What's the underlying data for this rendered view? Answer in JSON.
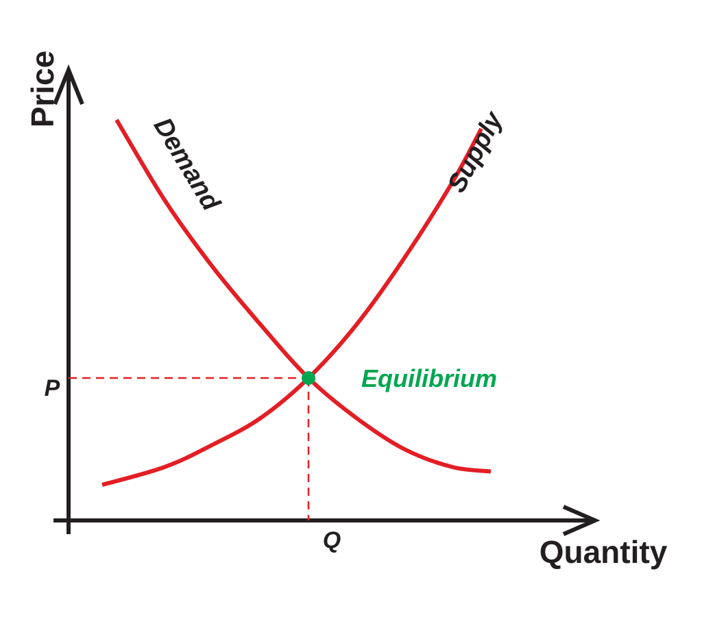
{
  "chart_data": {
    "type": "line",
    "title": "",
    "xlabel": "Quantity",
    "ylabel": "Price",
    "xlim": [
      0,
      100
    ],
    "ylim": [
      0,
      100
    ],
    "grid": false,
    "series": [
      {
        "name": "Demand",
        "color": "#e31e24",
        "points": [
          [
            10,
            90
          ],
          [
            20,
            72
          ],
          [
            30,
            57
          ],
          [
            40,
            44
          ],
          [
            50,
            32
          ],
          [
            60,
            23
          ],
          [
            70,
            16
          ],
          [
            80,
            12
          ],
          [
            88,
            11
          ]
        ]
      },
      {
        "name": "Supply",
        "color": "#e31e24",
        "points": [
          [
            7,
            8
          ],
          [
            20,
            12
          ],
          [
            30,
            17
          ],
          [
            40,
            23
          ],
          [
            50,
            32
          ],
          [
            60,
            44
          ],
          [
            70,
            59
          ],
          [
            80,
            76
          ],
          [
            86,
            88
          ]
        ]
      }
    ],
    "equilibrium": {
      "label": "Equilibrium",
      "x": 50,
      "y": 32,
      "color": "#00a651",
      "x_tick_label": "Q",
      "y_tick_label": "P"
    },
    "guide_line_color": "#e31e24",
    "axis_color": "#231f20"
  }
}
